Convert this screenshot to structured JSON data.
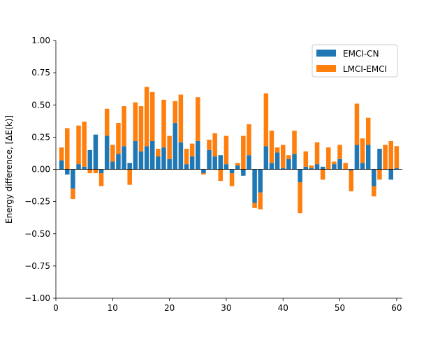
{
  "chart_data": {
    "type": "bar",
    "stacked": true,
    "xlabel": "",
    "ylabel": "Energy difference, [ΔE(k)]",
    "xlim": [
      0,
      61
    ],
    "ylim": [
      -1.0,
      1.0
    ],
    "xticks": [
      "0",
      "10",
      "20",
      "30",
      "40",
      "50",
      "60"
    ],
    "yticks": [
      "−1.00",
      "−0.75",
      "−0.50",
      "−0.25",
      "0.00",
      "0.25",
      "0.50",
      "0.75",
      "1.00"
    ],
    "grid": false,
    "legend_position": "top-right",
    "x": [
      1,
      2,
      3,
      4,
      5,
      6,
      7,
      8,
      9,
      10,
      11,
      12,
      13,
      14,
      15,
      16,
      17,
      18,
      19,
      20,
      21,
      22,
      23,
      24,
      25,
      26,
      27,
      28,
      29,
      30,
      31,
      32,
      33,
      34,
      35,
      36,
      37,
      38,
      39,
      40,
      41,
      42,
      43,
      44,
      45,
      46,
      47,
      48,
      49,
      50,
      51,
      52,
      53,
      54,
      55,
      56,
      57,
      58,
      59,
      60
    ],
    "series": [
      {
        "name": "EMCI-CN",
        "color": "#1f77b4",
        "values": [
          0.07,
          -0.04,
          -0.15,
          0.04,
          0.02,
          0.15,
          0.27,
          -0.03,
          0.26,
          0.06,
          0.12,
          0.18,
          0.05,
          0.22,
          0.14,
          0.18,
          0.22,
          0.1,
          0.17,
          0.08,
          0.36,
          0.21,
          0.04,
          0.1,
          0.22,
          -0.03,
          0.15,
          0.1,
          0.11,
          0.04,
          -0.03,
          0.03,
          -0.05,
          0.11,
          -0.26,
          -0.18,
          0.18,
          0.05,
          0.13,
          0.01,
          0.08,
          0.12,
          -0.1,
          0.02,
          0.01,
          0.04,
          0.02,
          0.0,
          0.04,
          0.08,
          0.0,
          -0.01,
          0.19,
          0.05,
          0.19,
          -0.13,
          0.16,
          0.0,
          -0.08,
          0.01
        ]
      },
      {
        "name": "LMCI-EMCI",
        "color": "#ff7f0e",
        "values": [
          0.1,
          0.32,
          -0.08,
          0.3,
          0.35,
          -0.03,
          -0.03,
          -0.1,
          0.21,
          0.13,
          0.24,
          0.31,
          -0.12,
          0.3,
          0.35,
          0.46,
          0.38,
          0.06,
          0.37,
          0.18,
          0.17,
          0.37,
          0.12,
          0.1,
          0.34,
          -0.01,
          0.08,
          0.18,
          -0.09,
          0.22,
          -0.1,
          0.02,
          0.26,
          0.24,
          -0.04,
          -0.13,
          0.41,
          0.25,
          0.04,
          0.18,
          0.03,
          0.18,
          -0.24,
          0.12,
          0.02,
          0.17,
          -0.08,
          0.17,
          0.02,
          0.11,
          0.05,
          -0.16,
          0.32,
          0.19,
          0.21,
          -0.08,
          -0.08,
          0.19,
          0.22,
          0.17
        ]
      }
    ]
  }
}
